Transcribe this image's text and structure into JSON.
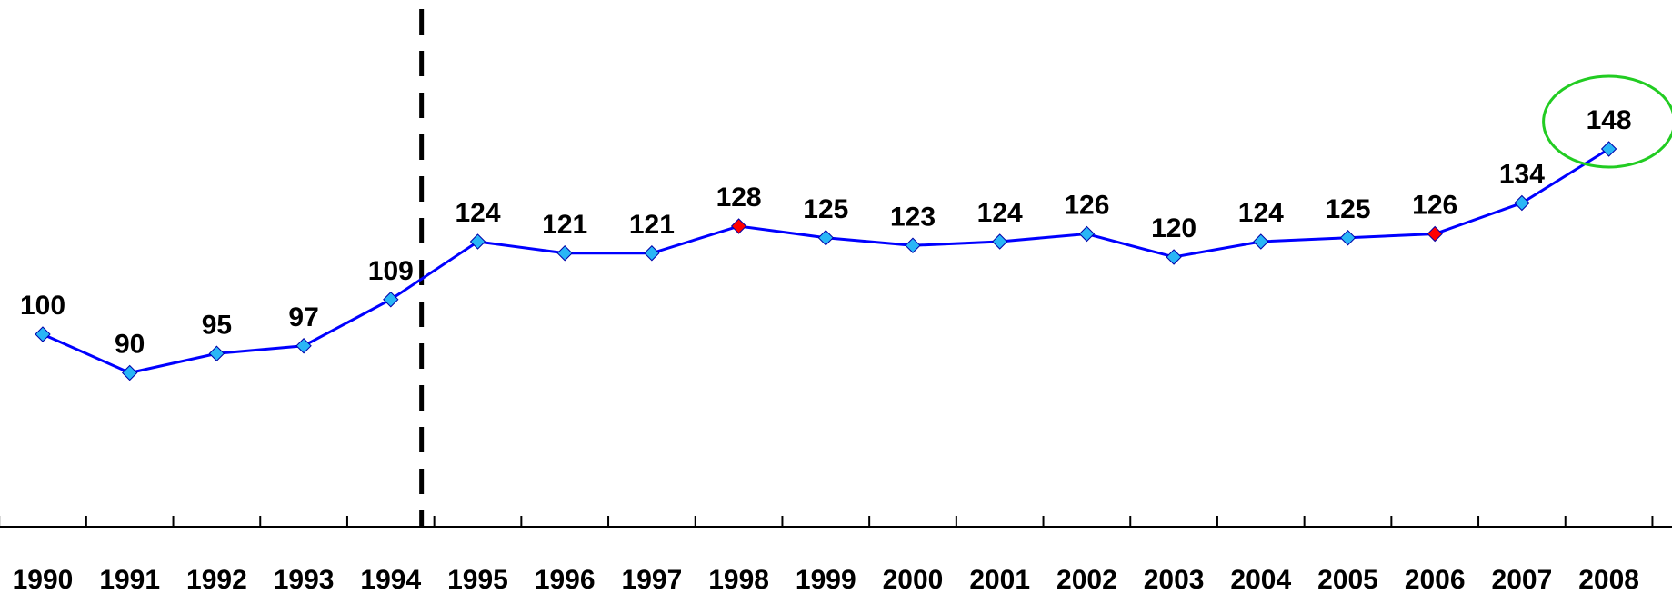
{
  "chart_data": {
    "type": "line",
    "categories": [
      "1990",
      "1991",
      "1992",
      "1993",
      "1994",
      "1995",
      "1996",
      "1997",
      "1998",
      "1999",
      "2000",
      "2001",
      "2002",
      "2003",
      "2004",
      "2005",
      "2006",
      "2007",
      "2008"
    ],
    "series": [
      {
        "color": "#0000ff",
        "values": [
          100,
          90,
          95,
          97,
          109,
          124,
          121,
          121,
          128,
          125,
          123,
          124,
          126,
          120,
          124,
          125,
          126,
          134,
          148
        ],
        "point_colors": [
          "#29b6f6",
          "#29b6f6",
          "#29b6f6",
          "#29b6f6",
          "#29b6f6",
          "#29b6f6",
          "#29b6f6",
          "#29b6f6",
          "#ff0000",
          "#29b6f6",
          "#29b6f6",
          "#29b6f6",
          "#29b6f6",
          "#29b6f6",
          "#29b6f6",
          "#29b6f6",
          "#ff0000",
          "#29b6f6",
          "#29b6f6"
        ]
      }
    ],
    "grid": false
  }
}
